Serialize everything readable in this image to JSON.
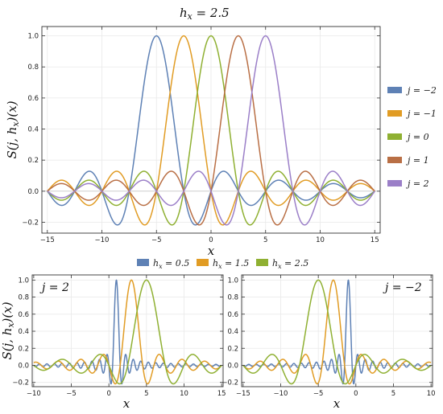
{
  "colors": {
    "blue": "#5E81B5",
    "orange": "#E19C24",
    "green": "#8FB032",
    "brown": "#B96F45",
    "purple": "#9B7FC8",
    "grid": "#e9e9e9",
    "frame": "#333333"
  },
  "chart_data": [
    {
      "type": "line",
      "title": "h_x = 2.5",
      "xlabel": "x",
      "ylabel": "S(j,h_x)(x)",
      "xlim": [
        -15.5,
        15.5
      ],
      "ylim": [
        -0.27,
        1.06
      ],
      "xticks": [
        "-15",
        "-10",
        "-5",
        "0",
        "5",
        "10",
        "15"
      ],
      "yticks": [
        "-0.2",
        "0.0",
        "0.2",
        "0.4",
        "0.6",
        "0.8",
        "1.0"
      ],
      "grid": true,
      "legend_position": "right",
      "function": "sinc(pi*(x - j*h)/h), sampled on x in [-15, 15]",
      "h": 2.5,
      "series": [
        {
          "name": "j = −2",
          "j": -2,
          "color": "blue"
        },
        {
          "name": "j = −1",
          "j": -1,
          "color": "orange"
        },
        {
          "name": "j = 0",
          "j": 0,
          "color": "green"
        },
        {
          "name": "j = 1",
          "j": 1,
          "color": "brown"
        },
        {
          "name": "j = 2",
          "j": 2,
          "color": "purple"
        }
      ]
    },
    {
      "type": "line",
      "panel_label": "j = 2",
      "xlabel": "x",
      "ylabel": "S(j,h_x)(x)",
      "xlim": [
        -10.2,
        15.2
      ],
      "ylim": [
        -0.25,
        1.06
      ],
      "xticks": [
        "-10",
        "-5",
        "0",
        "5",
        "10",
        "15"
      ],
      "yticks": [
        "-0.2",
        "0.0",
        "0.2",
        "0.4",
        "0.6",
        "0.8",
        "1.0"
      ],
      "grid": true,
      "j": 2,
      "domain": [
        -10,
        15
      ],
      "series": [
        {
          "name": "h_x = 0.5",
          "h": 0.5,
          "color": "blue"
        },
        {
          "name": "h_x = 1.5",
          "h": 1.5,
          "color": "orange"
        },
        {
          "name": "h_x = 2.5",
          "h": 2.5,
          "color": "green"
        }
      ]
    },
    {
      "type": "line",
      "panel_label": "j = −2",
      "xlabel": "x",
      "xlim": [
        -15.2,
        10.2
      ],
      "ylim": [
        -0.25,
        1.06
      ],
      "xticks": [
        "-15",
        "-10",
        "-5",
        "0",
        "5",
        "10"
      ],
      "yticks": [
        "-0.2",
        "0.0",
        "0.2",
        "0.4",
        "0.6",
        "0.8",
        "1.0"
      ],
      "grid": true,
      "j": -2,
      "domain": [
        -15,
        10
      ],
      "series": [
        {
          "name": "h_x = 0.5",
          "h": 0.5,
          "color": "blue"
        },
        {
          "name": "h_x = 1.5",
          "h": 1.5,
          "color": "orange"
        },
        {
          "name": "h_x = 2.5",
          "h": 2.5,
          "color": "green"
        }
      ]
    }
  ],
  "legend_bottom": [
    {
      "label": "h_x = 0.5",
      "color": "blue"
    },
    {
      "label": "h_x = 1.5",
      "color": "orange"
    },
    {
      "label": "h_x = 2.5",
      "color": "green"
    }
  ]
}
